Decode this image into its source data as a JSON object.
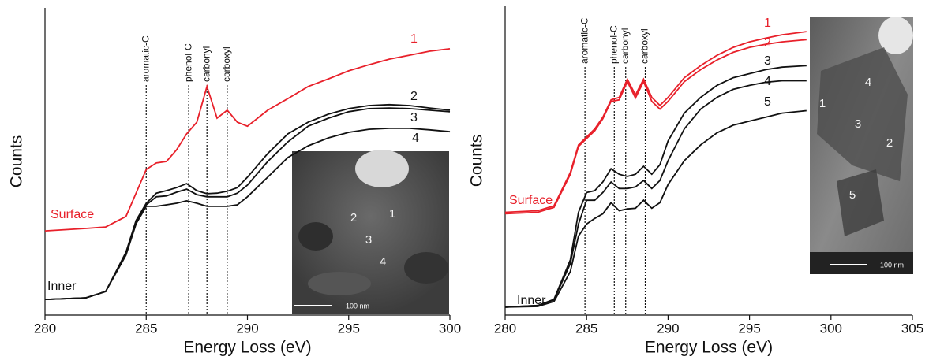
{
  "chart_data": [
    {
      "type": "line",
      "xlabel": "Energy Loss (eV)",
      "ylabel": "Counts",
      "xlim": [
        280,
        300
      ],
      "xticks": [
        280,
        285,
        290,
        295,
        300
      ],
      "ylim": [
        0,
        100
      ],
      "x": [
        280,
        282,
        283,
        284,
        284.5,
        285,
        285.5,
        286,
        286.5,
        287,
        287.5,
        288,
        288.5,
        289,
        289.5,
        290,
        291,
        292,
        293,
        294,
        295,
        296,
        297,
        298,
        299,
        300
      ],
      "series": [
        {
          "name": "1",
          "color": "#e8202a",
          "values": [
            27.4,
            28.2,
            28.7,
            32.1,
            39.7,
            47.4,
            49.5,
            50,
            53.8,
            59,
            62.8,
            74.4,
            64.1,
            66.7,
            62.8,
            61.5,
            66.7,
            70.5,
            74.4,
            76.9,
            79.5,
            81.5,
            83.3,
            84.6,
            85.9,
            86.7
          ]
        },
        {
          "name": "2",
          "color": "#111111",
          "values": [
            5.1,
            5.6,
            7.7,
            20.5,
            30.8,
            36.4,
            39.7,
            40.5,
            41.5,
            42.8,
            40.5,
            39.5,
            39.7,
            40.3,
            41.5,
            44.9,
            52.6,
            59,
            62.8,
            65.4,
            67.2,
            68.2,
            68.5,
            68.2,
            67.4,
            66.7
          ]
        },
        {
          "name": "3",
          "color": "#111111",
          "values": [
            5.1,
            5.6,
            7.7,
            20,
            30.3,
            35.9,
            38.5,
            38.8,
            40,
            41,
            39.2,
            38.5,
            38.5,
            38.5,
            39.7,
            42.3,
            50,
            56.4,
            61.5,
            64.1,
            66.2,
            67.2,
            67.4,
            67.2,
            66.7,
            66.2
          ]
        },
        {
          "name": "4",
          "color": "#111111",
          "values": [
            5.1,
            5.6,
            7.7,
            19.5,
            29.7,
            35.4,
            35.4,
            35.9,
            36.4,
            37.2,
            36.4,
            35.4,
            35.4,
            35.4,
            35.9,
            38.5,
            44.9,
            51.3,
            55.1,
            57.7,
            59.5,
            60.5,
            60.8,
            60.8,
            60.3,
            59.7
          ]
        }
      ],
      "reference_lines": [
        {
          "x": 285,
          "label": "aromatic-C"
        },
        {
          "x": 287.1,
          "label": "phenol-C"
        },
        {
          "x": 288,
          "label": "carbonyl"
        },
        {
          "x": 289,
          "label": "carboxyl"
        }
      ],
      "annotations": [
        {
          "text": "Surface",
          "color": "#e8202a"
        },
        {
          "text": "Inner",
          "color": "#111111"
        }
      ],
      "inset": {
        "labels": [
          "1",
          "2",
          "3",
          "4"
        ],
        "scale_bar": "100 nm"
      }
    },
    {
      "type": "line",
      "xlabel": "Energy Loss (eV)",
      "ylabel": "Counts",
      "xlim": [
        280,
        305
      ],
      "xticks": [
        280,
        285,
        290,
        295,
        300,
        305
      ],
      "ylim": [
        0,
        100
      ],
      "x": [
        280,
        282,
        283,
        284,
        284.5,
        285,
        285.5,
        286,
        286.5,
        287,
        287.5,
        288,
        288.5,
        289,
        289.5,
        290,
        291,
        292,
        293,
        294,
        295,
        296,
        297,
        298.5
      ],
      "series": [
        {
          "name": "1",
          "color": "#e8202a",
          "values": [
            33.3,
            33.8,
            35.4,
            46.2,
            55.1,
            57.7,
            60.3,
            64.1,
            69.7,
            70.5,
            76.4,
            71.3,
            76.4,
            70.5,
            67.9,
            70.5,
            76.9,
            80.8,
            84.1,
            86.7,
            88.5,
            89.7,
            90.8,
            91.8
          ]
        },
        {
          "name": "2",
          "color": "#e8202a",
          "values": [
            32.8,
            33.3,
            34.9,
            45.6,
            54.6,
            57.2,
            59.7,
            63.6,
            69.2,
            69.7,
            75.6,
            70.3,
            75.6,
            69.2,
            66.7,
            69.2,
            75.6,
            79.5,
            82.6,
            85.1,
            86.7,
            87.7,
            88.5,
            89.2
          ]
        },
        {
          "name": "3",
          "color": "#111111",
          "values": [
            2.6,
            3.1,
            5.1,
            17.9,
            33.3,
            39.7,
            40.3,
            43.1,
            47.4,
            45.6,
            44.9,
            45.6,
            48.2,
            45.6,
            48.7,
            56.4,
            65.4,
            70.5,
            74.4,
            76.9,
            78.2,
            79.5,
            80.3,
            80.8
          ]
        },
        {
          "name": "4",
          "color": "#111111",
          "values": [
            2.6,
            3.1,
            4.9,
            16.7,
            29.5,
            37.2,
            37.2,
            39.7,
            43.1,
            41,
            41,
            41.5,
            43.6,
            41,
            43.6,
            50,
            60.3,
            66.7,
            70.5,
            73.1,
            74.4,
            75.4,
            75.9,
            75.9
          ]
        },
        {
          "name": "5",
          "color": "#111111",
          "values": [
            2.6,
            2.8,
            4.4,
            14.1,
            25.6,
            29.5,
            31.3,
            32.8,
            36.4,
            33.8,
            34.4,
            34.6,
            37.2,
            34.6,
            36.4,
            42.3,
            50,
            55.1,
            59,
            61.5,
            62.8,
            64.1,
            65.4,
            66.2
          ]
        }
      ],
      "reference_lines": [
        {
          "x": 284.9,
          "label": "aromatic-C"
        },
        {
          "x": 286.7,
          "label": "phenol-C"
        },
        {
          "x": 287.4,
          "label": "carbonyl"
        },
        {
          "x": 288.6,
          "label": "carboxyl"
        }
      ],
      "annotations": [
        {
          "text": "Surface",
          "color": "#e8202a"
        },
        {
          "text": "Inner",
          "color": "#111111"
        }
      ],
      "inset": {
        "labels": [
          "4",
          "1",
          "3",
          "2",
          "5"
        ],
        "scale_bar": "100 nm"
      }
    }
  ]
}
